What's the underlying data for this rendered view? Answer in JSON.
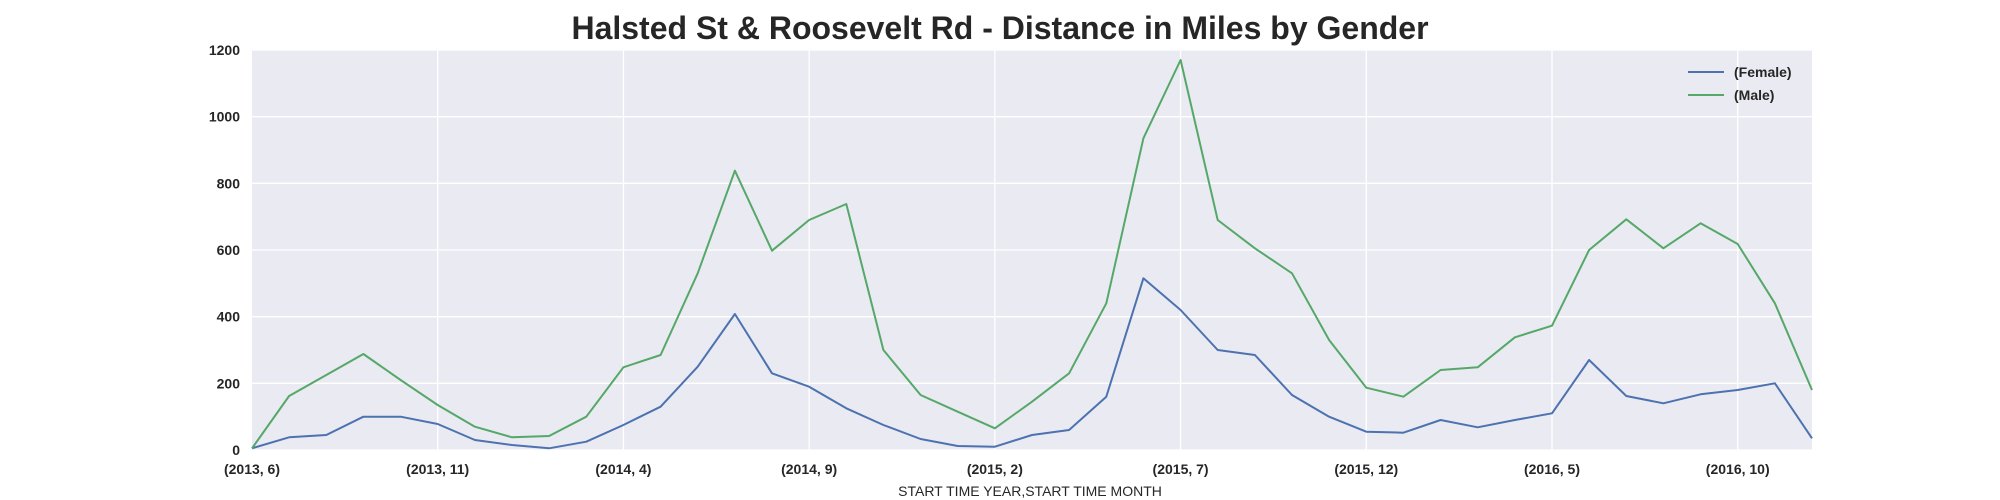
{
  "chart_data": {
    "type": "line",
    "title": "Halsted St & Roosevelt Rd - Distance in Miles by Gender",
    "xlabel": "START TIME YEAR,START TIME MONTH",
    "ylabel": "",
    "ylim": [
      0,
      1200
    ],
    "yticks": [
      0,
      200,
      400,
      600,
      800,
      1000,
      1200
    ],
    "x": [
      "(2013, 6)",
      "(2013, 7)",
      "(2013, 8)",
      "(2013, 9)",
      "(2013, 10)",
      "(2013, 11)",
      "(2013, 12)",
      "(2014, 1)",
      "(2014, 2)",
      "(2014, 3)",
      "(2014, 4)",
      "(2014, 5)",
      "(2014, 6)",
      "(2014, 7)",
      "(2014, 8)",
      "(2014, 9)",
      "(2014, 10)",
      "(2014, 11)",
      "(2014, 12)",
      "(2015, 1)",
      "(2015, 2)",
      "(2015, 3)",
      "(2015, 4)",
      "(2015, 5)",
      "(2015, 6)",
      "(2015, 7)",
      "(2015, 8)",
      "(2015, 9)",
      "(2015, 10)",
      "(2015, 11)",
      "(2015, 12)",
      "(2016, 1)",
      "(2016, 2)",
      "(2016, 3)",
      "(2016, 4)",
      "(2016, 5)",
      "(2016, 6)",
      "(2016, 7)",
      "(2016, 8)",
      "(2016, 9)",
      "(2016, 10)",
      "(2016, 11)",
      "(2016, 12)"
    ],
    "xtick_labels": [
      "(2013, 6)",
      "(2013, 11)",
      "(2014, 4)",
      "(2014, 9)",
      "(2015, 2)",
      "(2015, 7)",
      "(2015, 12)",
      "(2016, 5)",
      "(2016, 10)"
    ],
    "grid": true,
    "legend_position": "top-right",
    "series": [
      {
        "name": "(Female)",
        "color": "#4c72b0",
        "values": [
          5,
          38,
          45,
          100,
          100,
          78,
          30,
          15,
          5,
          25,
          75,
          130,
          250,
          408,
          230,
          190,
          125,
          75,
          33,
          12,
          10,
          45,
          60,
          160,
          515,
          420,
          300,
          285,
          165,
          100,
          55,
          52,
          90,
          68,
          90,
          110,
          270,
          162,
          140,
          167,
          180,
          200,
          35
        ]
      },
      {
        "name": "(Male)",
        "color": "#55a868",
        "values": [
          5,
          162,
          225,
          288,
          210,
          135,
          70,
          38,
          42,
          100,
          248,
          285,
          530,
          838,
          598,
          690,
          738,
          300,
          165,
          115,
          65,
          145,
          230,
          440,
          935,
          1170,
          690,
          605,
          530,
          330,
          187,
          160,
          240,
          248,
          338,
          373,
          600,
          692,
          605,
          680,
          618,
          440,
          180
        ]
      }
    ]
  }
}
